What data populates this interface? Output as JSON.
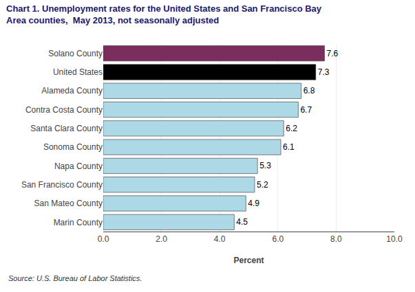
{
  "chart_data": {
    "type": "bar",
    "orientation": "horizontal",
    "title": "Chart 1. Unemployment rates for the United States and San Francisco Bay\nArea counties,  May 2013, not seasonally adjusted",
    "categories": [
      "Marin County",
      "San Mateo County",
      "San Francisco County",
      "Napa County",
      "Sonoma County",
      "Santa Clara County",
      "Contra Costa County",
      "Alameda County",
      "United States",
      "Solano County"
    ],
    "values": [
      4.5,
      4.9,
      5.2,
      5.3,
      6.1,
      6.2,
      6.7,
      6.8,
      7.3,
      7.6
    ],
    "colors": [
      "#add8e6",
      "#add8e6",
      "#add8e6",
      "#add8e6",
      "#add8e6",
      "#add8e6",
      "#add8e6",
      "#add8e6",
      "#000000",
      "#7B2D5E"
    ],
    "data_labels": true,
    "xlabel": "Percent",
    "xlim": [
      0,
      10
    ],
    "xticks": [
      {
        "value": 0,
        "label": "0.0"
      },
      {
        "value": 2,
        "label": "2.0"
      },
      {
        "value": 4,
        "label": "4.0"
      },
      {
        "value": 6,
        "label": "6.0"
      },
      {
        "value": 8,
        "label": "8.0"
      },
      {
        "value": 10,
        "label": "10.0"
      }
    ],
    "grid": true,
    "annotations": [
      "Source: U.S. Bureau of Labor Statistics."
    ]
  }
}
